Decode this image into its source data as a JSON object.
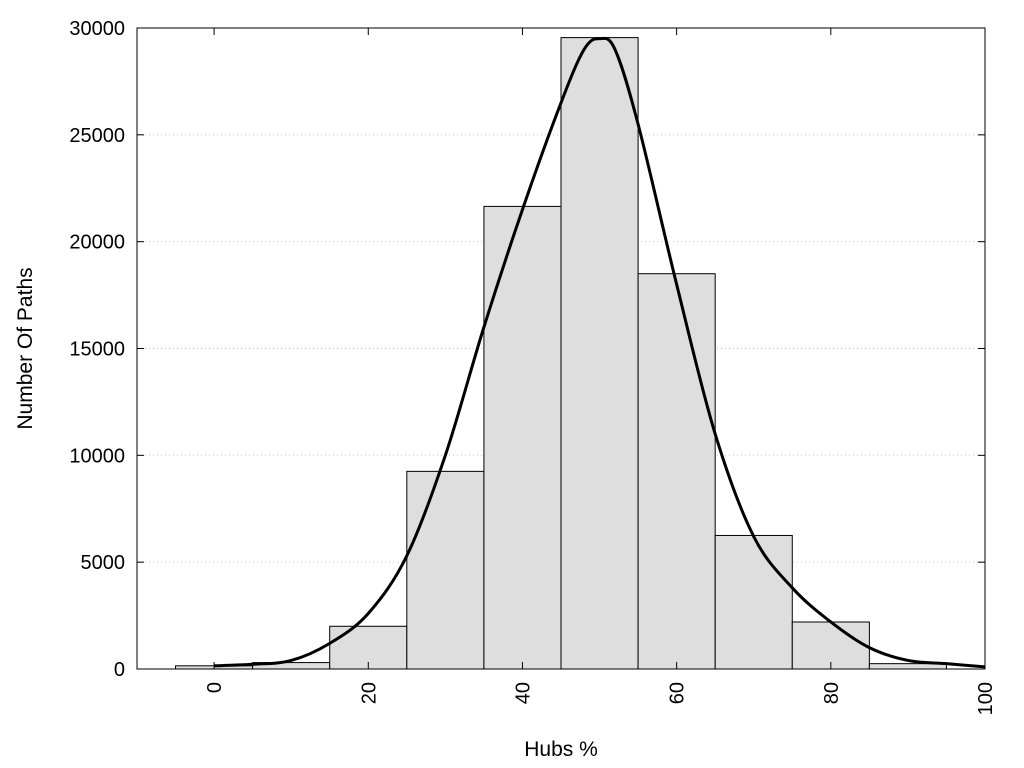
{
  "chart_data": {
    "type": "bar",
    "title": "",
    "xlabel": "Hubs %",
    "ylabel": "Number Of Paths",
    "xlim": [
      -10,
      100
    ],
    "ylim": [
      0,
      30000
    ],
    "x_ticks": [
      0,
      20,
      40,
      60,
      80,
      100
    ],
    "y_ticks": [
      0,
      5000,
      10000,
      15000,
      20000,
      25000,
      30000
    ],
    "x_tick_labels": [
      "0",
      "20",
      "40",
      "60",
      "80",
      "100"
    ],
    "y_tick_labels": [
      "0",
      "5000",
      "10000",
      "15000",
      "20000",
      "25000",
      "30000"
    ],
    "grid": "horizontal dotted",
    "bin_width": 10,
    "bins": [
      {
        "center": 0,
        "value": 150
      },
      {
        "center": 10,
        "value": 300
      },
      {
        "center": 20,
        "value": 2000
      },
      {
        "center": 30,
        "value": 9250
      },
      {
        "center": 40,
        "value": 21650
      },
      {
        "center": 50,
        "value": 29550
      },
      {
        "center": 60,
        "value": 18500
      },
      {
        "center": 70,
        "value": 6250
      },
      {
        "center": 80,
        "value": 2200
      },
      {
        "center": 90,
        "value": 250
      }
    ],
    "curve": {
      "x": [
        0,
        5,
        10,
        15,
        20,
        25,
        30,
        35,
        40,
        45,
        48,
        50,
        52,
        55,
        60,
        65,
        70,
        75,
        80,
        85,
        90,
        95,
        100
      ],
      "y": [
        150,
        220,
        400,
        1200,
        2600,
        5300,
        10000,
        16000,
        21500,
        26500,
        29000,
        29500,
        29000,
        25500,
        18000,
        11000,
        6200,
        3800,
        2200,
        1000,
        400,
        250,
        100
      ]
    },
    "colors": {
      "bar_fill": "#dedede",
      "bar_stroke": "#000000",
      "curve": "#000000",
      "grid": "#c8c8c8"
    }
  }
}
